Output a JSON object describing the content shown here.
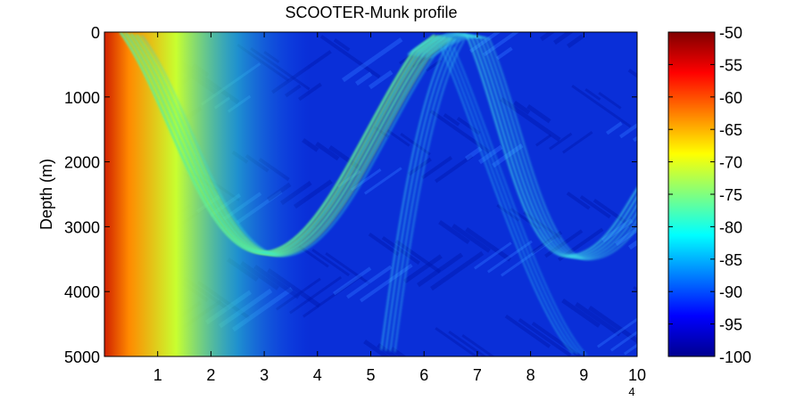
{
  "chart_data": {
    "type": "heatmap",
    "title": "SCOOTER-Munk profile",
    "xlabel": "",
    "ylabel": "Depth (m)",
    "x_ticks": [
      "1",
      "2",
      "3",
      "4",
      "5",
      "6",
      "7",
      "8",
      "9",
      "10"
    ],
    "x_tick_values": [
      1,
      2,
      3,
      4,
      5,
      6,
      7,
      8,
      9,
      10
    ],
    "x_exponent": "4",
    "xlim": [
      0,
      10
    ],
    "y_ticks": [
      "0",
      "1000",
      "2000",
      "3000",
      "4000",
      "5000"
    ],
    "y_tick_values": [
      0,
      1000,
      2000,
      3000,
      4000,
      5000
    ],
    "ylim": [
      0,
      5000
    ],
    "y_reversed": true,
    "colorbar": {
      "ticks": [
        "-50",
        "-55",
        "-60",
        "-65",
        "-70",
        "-75",
        "-80",
        "-85",
        "-90",
        "-95",
        "-100"
      ],
      "values": [
        -50,
        -55,
        -60,
        -65,
        -70,
        -75,
        -80,
        -85,
        -90,
        -95,
        -100
      ],
      "range": [
        -100,
        -50
      ],
      "colormap": "jet"
    },
    "ray_paths": [
      {
        "shape": "convergence-zone",
        "turning_depth": 3300,
        "upper_turning_x": 6.2,
        "peak_level": -70
      },
      {
        "shape": "convergence-zone",
        "turning_depth": 3400,
        "start_x": 5.7,
        "upper_turning_x": 6.8,
        "lower_turning_x": 8.6,
        "peak_level": -80
      }
    ],
    "background_level": -95,
    "near_field_level": -55
  }
}
